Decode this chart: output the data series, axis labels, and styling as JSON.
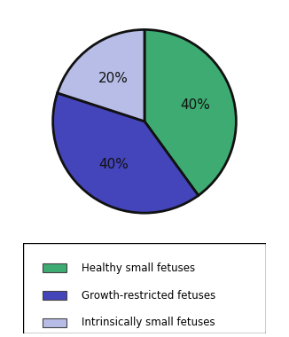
{
  "slices": [
    40,
    40,
    20
  ],
  "labels": [
    "40%",
    "40%",
    "20%"
  ],
  "colors": [
    "#3dab72",
    "#4444bb",
    "#b8bde8"
  ],
  "legend_labels": [
    "Healthy small fetuses",
    "Growth-restricted fetuses",
    "Intrinsically small fetuses"
  ],
  "startangle": 90,
  "counterclock": false,
  "background_color": "#ffffff",
  "label_fontsize": 11,
  "label_color": "#111111",
  "legend_fontsize": 8.5,
  "wedge_edgecolor": "#111111",
  "wedge_linewidth": 2.0
}
